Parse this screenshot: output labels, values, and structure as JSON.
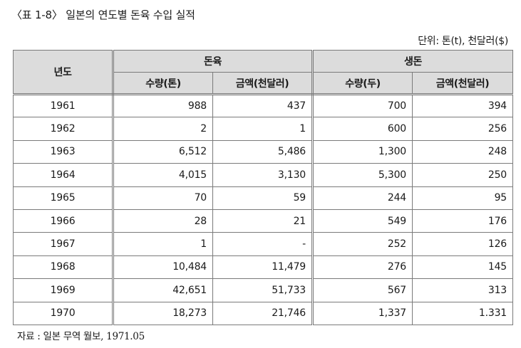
{
  "caption": "〈표 1-8〉 일본의 연도별 돈육 수입 실적",
  "unit_note": "단위: 톤(t), 천달러($)",
  "table": {
    "year_header": "년도",
    "group_pork": "돈육",
    "group_pig": "생돈",
    "col_qty_ton": "수량(톤)",
    "col_amount_1": "금액(천달러)",
    "col_qty_head": "수량(두)",
    "col_amount_2": "금액(천달러)",
    "rows": [
      {
        "year": "1961",
        "pork_qty": "988",
        "pork_amount": "437",
        "pig_qty": "700",
        "pig_amount": "394"
      },
      {
        "year": "1962",
        "pork_qty": "2",
        "pork_amount": "1",
        "pig_qty": "600",
        "pig_amount": "256"
      },
      {
        "year": "1963",
        "pork_qty": "6,512",
        "pork_amount": "5,486",
        "pig_qty": "1,300",
        "pig_amount": "248"
      },
      {
        "year": "1964",
        "pork_qty": "4,015",
        "pork_amount": "3,130",
        "pig_qty": "5,300",
        "pig_amount": "250"
      },
      {
        "year": "1965",
        "pork_qty": "70",
        "pork_amount": "59",
        "pig_qty": "244",
        "pig_amount": "95"
      },
      {
        "year": "1966",
        "pork_qty": "28",
        "pork_amount": "21",
        "pig_qty": "549",
        "pig_amount": "176"
      },
      {
        "year": "1967",
        "pork_qty": "1",
        "pork_amount": "-",
        "pig_qty": "252",
        "pig_amount": "126"
      },
      {
        "year": "1968",
        "pork_qty": "10,484",
        "pork_amount": "11,479",
        "pig_qty": "276",
        "pig_amount": "145"
      },
      {
        "year": "1969",
        "pork_qty": "42,651",
        "pork_amount": "51,733",
        "pig_qty": "567",
        "pig_amount": "313"
      },
      {
        "year": "1970",
        "pork_qty": "18,273",
        "pork_amount": "21,746",
        "pig_qty": "1,337",
        "pig_amount": "1.331"
      }
    ]
  },
  "source": "자료 : 일본 무역 월보, 1971.05"
}
